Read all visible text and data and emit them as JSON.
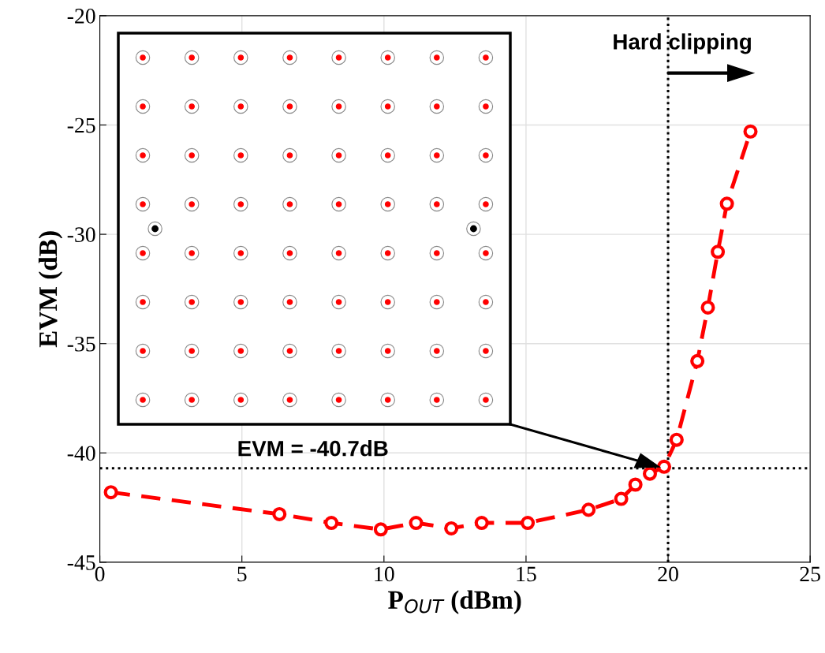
{
  "chart_data": {
    "type": "line",
    "xlabel": "P$_{OUT}$ (dBm)",
    "ylabel": "EVM (dB)",
    "x": [
      0.39,
      6.32,
      8.15,
      9.89,
      11.13,
      12.37,
      13.44,
      15.06,
      17.2,
      18.35,
      18.85,
      19.36,
      19.86,
      20.3,
      21.03,
      21.4,
      21.75,
      22.07,
      22.9
    ],
    "series": [
      {
        "color": "#ff0000",
        "values": [
          -41.8,
          -42.8,
          -43.2,
          -43.5,
          -43.2,
          -43.45,
          -43.2,
          -43.2,
          -42.6,
          -42.1,
          -41.45,
          -40.95,
          -40.63,
          -39.4,
          -35.8,
          -33.35,
          -30.8,
          -28.6,
          -25.3
        ]
      }
    ],
    "xlim": [
      0,
      25
    ],
    "xticks": [
      0,
      5,
      10,
      15,
      20,
      25
    ],
    "ylim": [
      -45,
      -20
    ],
    "yticks": [
      -45,
      -40,
      -35,
      -30,
      -25,
      -20
    ],
    "ref_lines": [
      {
        "axis": "y",
        "value": -40.7,
        "label": "EVM = -40.7dB",
        "color": "#000000",
        "line_style": "dotted"
      },
      {
        "axis": "x",
        "value": 20,
        "label": "Hard clipping",
        "color": "#000000",
        "line_style": "dotted"
      }
    ],
    "grid": true,
    "marker": "circle",
    "line_style": "dashed"
  }
}
